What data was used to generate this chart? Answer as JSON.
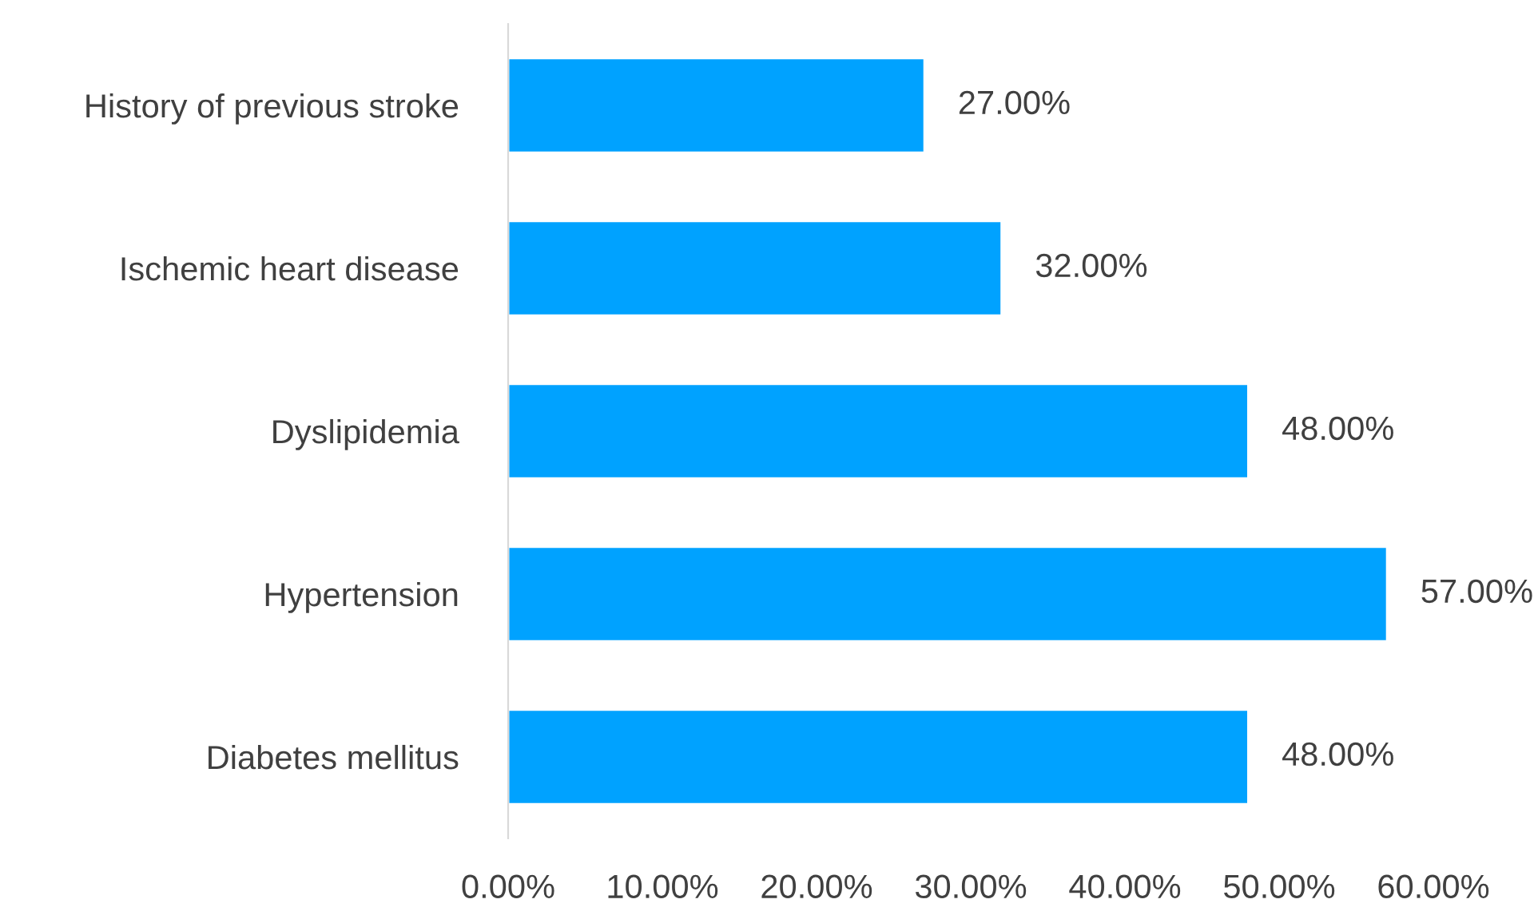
{
  "chart_data": {
    "type": "bar",
    "orientation": "horizontal",
    "categories": [
      "History of previous stroke",
      "Ischemic heart disease",
      "Dyslipidemia",
      "Hypertension",
      "Diabetes mellitus"
    ],
    "values": [
      27,
      32,
      48,
      57,
      48
    ],
    "value_labels": [
      "27.00%",
      "32.00%",
      "48.00%",
      "57.00%",
      "48.00%"
    ],
    "color": "#00a2ff",
    "xlim": [
      0,
      60
    ],
    "xticks": [
      {
        "value": 0,
        "label": "0.00%"
      },
      {
        "value": 10,
        "label": "10.00%"
      },
      {
        "value": 20,
        "label": "20.00%"
      },
      {
        "value": 30,
        "label": "30.00%"
      },
      {
        "value": 40,
        "label": "40.00%"
      },
      {
        "value": 50,
        "label": "50.00%"
      },
      {
        "value": 60,
        "label": "60.00%"
      }
    ],
    "grid": false,
    "legend": false
  }
}
